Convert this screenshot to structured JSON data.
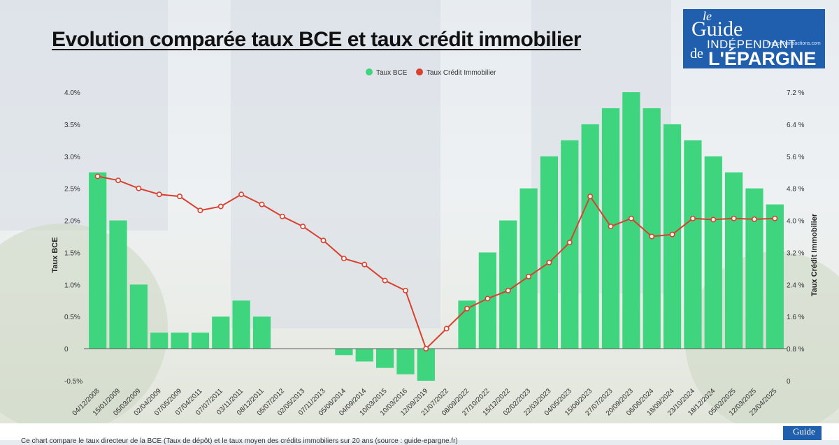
{
  "header": {
    "title": "Evolution comparée taux BCE et taux crédit immobilier"
  },
  "logo": {
    "le": "le",
    "guide": "Guide",
    "independant": "INDÉPENDANT",
    "de": "de",
    "epargne": "L'ÉPARGNE",
    "site": "FranceTransactions.com",
    "mini": "Guide"
  },
  "footer": {
    "text": "Ce chart compare le taux directeur de la BCE (Taux de dépôt) et le taux moyen des crédits immobiliers sur 20 ans (source : guide-epargne.fr)"
  },
  "colors": {
    "bce": "#3fd57f",
    "credit": "#d9412f",
    "axis": "#555555"
  },
  "chart_data": {
    "type": "bar",
    "categories": [
      "04/12/2008",
      "15/01/2009",
      "05/03/2009",
      "02/04/2009",
      "07/05/2009",
      "07/04/2011",
      "07/07/2011",
      "03/11/2011",
      "08/12/2011",
      "05/07/2012",
      "02/05/2013",
      "07/11/2013",
      "05/06/2014",
      "04/09/2014",
      "10/03/2015",
      "10/03/2016",
      "12/09/2019",
      "21/07/2022",
      "08/09/2022",
      "27/10/2022",
      "15/12/2022",
      "02/02/2023",
      "22/03/2023",
      "04/05/2023",
      "15/06/2023",
      "27/07/2023",
      "20/09/2023",
      "06/06/2024",
      "18/09/2024",
      "23/10/2024",
      "18/12/2024",
      "05/02/2025",
      "12/03/2025",
      "23/04/2025"
    ],
    "series": [
      {
        "name": "Taux BCE",
        "type": "bar",
        "axis": "left",
        "values": [
          2.75,
          2.0,
          1.0,
          0.25,
          0.25,
          0.25,
          0.5,
          0.75,
          0.5,
          0.0,
          0.0,
          0.0,
          -0.1,
          -0.2,
          -0.3,
          -0.4,
          -0.5,
          0.0,
          0.75,
          1.5,
          2.0,
          2.5,
          3.0,
          3.25,
          3.5,
          3.75,
          4.0,
          3.75,
          3.5,
          3.25,
          3.0,
          2.75,
          2.5,
          2.25
        ]
      },
      {
        "name": "Taux Crédit Immobilier",
        "type": "line",
        "axis": "right",
        "values": [
          5.1,
          5.0,
          4.8,
          4.65,
          4.6,
          4.25,
          4.35,
          4.65,
          4.4,
          4.1,
          3.85,
          3.5,
          3.05,
          2.9,
          2.5,
          2.25,
          0.8,
          1.3,
          1.8,
          2.05,
          2.25,
          2.6,
          2.95,
          3.45,
          4.6,
          3.85,
          4.05,
          3.6,
          3.65,
          4.05,
          4.02,
          4.05,
          4.03,
          4.05
        ]
      }
    ],
    "xlabel": "",
    "ylabel": "Taux BCE",
    "y2label": "Taux Crédit Immobilier",
    "ylim": [
      -0.5,
      4.0
    ],
    "y2lim": [
      0,
      7.2
    ],
    "yticks": [
      "-0.5%",
      "0",
      "0.5%",
      "1.0%",
      "1.5%",
      "2.0%",
      "2.5%",
      "3.0%",
      "3.5%",
      "4.0%"
    ],
    "y2ticks": [
      "0",
      "0.8 %",
      "1.6 %",
      "2.4 %",
      "3.2 %",
      "4.0 %",
      "4.8 %",
      "5.6 %",
      "6.4 %",
      "7.2 %"
    ],
    "legend": "top-center",
    "grid": false
  }
}
